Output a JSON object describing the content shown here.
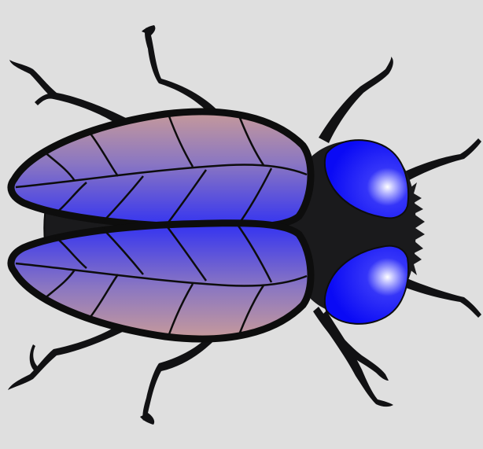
{
  "image": {
    "subject": "fly",
    "colors": {
      "background": "#dfdfdf",
      "body": "#1a1a1c",
      "outline": "#0d0d0d",
      "wing_tint_light": "#c79a9a",
      "wing_tint_mid": "#8a76c2",
      "wing_tint_strong": "#3232f2",
      "eye_base": "#0a0af5",
      "eye_glint": "#ffffff"
    },
    "parts": [
      "left-wing",
      "right-wing",
      "thorax",
      "head",
      "left-eye",
      "right-eye",
      "antennae",
      "legs"
    ]
  }
}
